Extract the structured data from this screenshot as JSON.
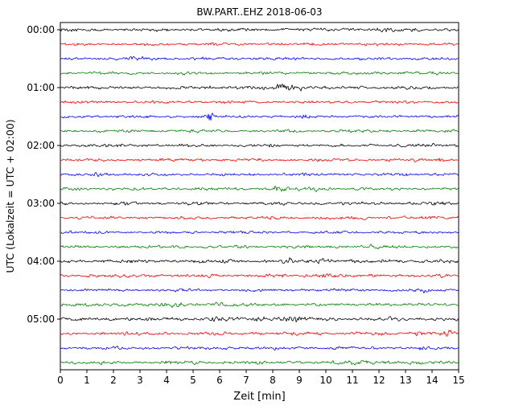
{
  "chart_data": {
    "type": "line",
    "title": "BW.PART..EHZ 2018-06-03",
    "xlabel": "Zeit  [min]",
    "ylabel": "UTC (Lokalzeit = UTC + 02:00)",
    "xlim": [
      0,
      15
    ],
    "minutes_per_line": 15,
    "x_tick_labels": [
      "0",
      "1",
      "2",
      "3",
      "4",
      "5",
      "6",
      "7",
      "8",
      "9",
      "10",
      "11",
      "12",
      "13",
      "14",
      "15"
    ],
    "y_tick_labels": [
      "00:00",
      "01:00",
      "02:00",
      "03:00",
      "04:00",
      "05:00"
    ],
    "color_cycle": [
      "#000000",
      "#ff0000",
      "#0000ff",
      "#008000"
    ],
    "legend_position": "none",
    "grid": false,
    "traces": [
      {
        "time": "00:00",
        "color": "#000000",
        "amp": 1.0,
        "events": [
          {
            "t": 12.2,
            "a": 1.0,
            "w": 0.15
          }
        ]
      },
      {
        "time": "00:15",
        "color": "#ff0000",
        "amp": 0.9,
        "events": []
      },
      {
        "time": "00:30",
        "color": "#0000ff",
        "amp": 0.9,
        "events": [
          {
            "t": 3.2,
            "a": 0.7,
            "w": 0.3
          }
        ]
      },
      {
        "time": "00:45",
        "color": "#008000",
        "amp": 0.9,
        "events": []
      },
      {
        "time": "01:00",
        "color": "#000000",
        "amp": 1.0,
        "events": [
          {
            "t": 5.6,
            "a": 1.2,
            "w": 0.1
          },
          {
            "t": 8.4,
            "a": 2.6,
            "w": 0.25
          },
          {
            "t": 8.95,
            "a": 1.8,
            "w": 0.12
          }
        ]
      },
      {
        "time": "01:15",
        "color": "#ff0000",
        "amp": 0.9,
        "events": []
      },
      {
        "time": "01:30",
        "color": "#0000ff",
        "amp": 0.9,
        "events": [
          {
            "t": 5.65,
            "a": 4.0,
            "w": 0.07
          },
          {
            "t": 9.1,
            "a": 0.7,
            "w": 0.15
          }
        ]
      },
      {
        "time": "01:45",
        "color": "#008000",
        "amp": 0.9,
        "events": []
      },
      {
        "time": "02:00",
        "color": "#000000",
        "amp": 1.0,
        "events": []
      },
      {
        "time": "02:15",
        "color": "#ff0000",
        "amp": 0.9,
        "events": [
          {
            "t": 14.3,
            "a": 1.3,
            "w": 0.15
          }
        ]
      },
      {
        "time": "02:30",
        "color": "#0000ff",
        "amp": 0.9,
        "events": [
          {
            "t": 1.5,
            "a": 0.7,
            "w": 0.2
          }
        ]
      },
      {
        "time": "02:45",
        "color": "#008000",
        "amp": 0.9,
        "events": [
          {
            "t": 8.2,
            "a": 2.2,
            "w": 0.2
          },
          {
            "t": 9.5,
            "a": 2.0,
            "w": 0.12
          }
        ]
      },
      {
        "time": "03:00",
        "color": "#000000",
        "amp": 1.0,
        "events": []
      },
      {
        "time": "03:15",
        "color": "#ff0000",
        "amp": 1.0,
        "events": []
      },
      {
        "time": "03:30",
        "color": "#0000ff",
        "amp": 0.9,
        "events": []
      },
      {
        "time": "03:45",
        "color": "#008000",
        "amp": 0.9,
        "events": [
          {
            "t": 11.5,
            "a": 0.7,
            "w": 0.3
          }
        ]
      },
      {
        "time": "04:00",
        "color": "#000000",
        "amp": 1.15,
        "events": [
          {
            "t": 8.5,
            "a": 1.3,
            "w": 0.15
          },
          {
            "t": 10.0,
            "a": 1.3,
            "w": 0.2
          }
        ]
      },
      {
        "time": "04:15",
        "color": "#ff0000",
        "amp": 1.05,
        "events": [
          {
            "t": 10.0,
            "a": 1.1,
            "w": 0.2
          }
        ]
      },
      {
        "time": "04:30",
        "color": "#0000ff",
        "amp": 0.9,
        "events": [
          {
            "t": 4.5,
            "a": 0.7,
            "w": 0.2
          },
          {
            "t": 13.7,
            "a": 0.6,
            "w": 0.15
          }
        ]
      },
      {
        "time": "04:45",
        "color": "#008000",
        "amp": 1.0,
        "events": [
          {
            "t": 4.3,
            "a": 0.9,
            "w": 0.2
          },
          {
            "t": 5.9,
            "a": 0.7,
            "w": 0.15
          }
        ]
      },
      {
        "time": "05:00",
        "color": "#000000",
        "amp": 1.15,
        "events": [
          {
            "t": 5.8,
            "a": 1.1,
            "w": 0.15
          },
          {
            "t": 7.6,
            "a": 1.3,
            "w": 0.2
          },
          {
            "t": 8.7,
            "a": 1.6,
            "w": 0.3
          }
        ]
      },
      {
        "time": "05:15",
        "color": "#ff0000",
        "amp": 1.05,
        "events": [
          {
            "t": 13.5,
            "a": 1.4,
            "w": 0.2
          },
          {
            "t": 14.6,
            "a": 0.9,
            "w": 0.15
          }
        ]
      },
      {
        "time": "05:30",
        "color": "#0000ff",
        "amp": 0.9,
        "events": [
          {
            "t": 6.3,
            "a": 1.1,
            "w": 0.08
          },
          {
            "t": 13.6,
            "a": 0.8,
            "w": 0.08
          }
        ]
      },
      {
        "time": "05:45",
        "color": "#008000",
        "amp": 1.05,
        "events": [
          {
            "t": 11.3,
            "a": 0.9,
            "w": 0.4
          }
        ]
      }
    ]
  }
}
